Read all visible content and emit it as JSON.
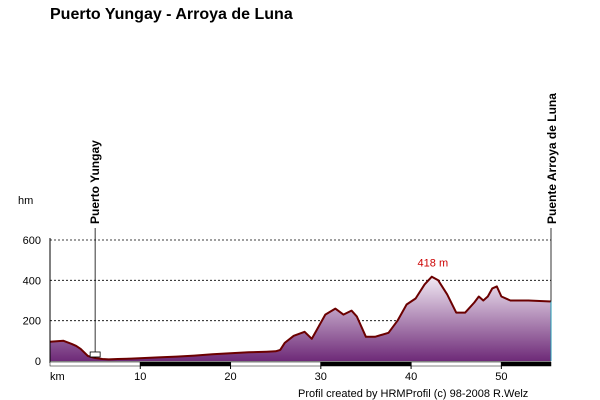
{
  "chart_data": {
    "type": "area",
    "title": "Puerto Yungay - Arroya de Luna",
    "ylabel": "hm",
    "xlabel": "km",
    "xlim": [
      0,
      55.5
    ],
    "ylim": [
      0,
      600
    ],
    "x_ticks": [
      10,
      20,
      30,
      40,
      50
    ],
    "y_ticks": [
      0,
      200,
      400,
      600
    ],
    "grid": "horizontal dashed",
    "colors": {
      "line": "#6b0000",
      "fill_top": "#f2eaf4",
      "fill_bottom": "#6e2a78",
      "peak_label": "#cc0000"
    },
    "x": [
      0,
      1.5,
      2.4,
      2.9,
      3.4,
      4.2,
      5,
      5.8,
      6.5,
      7.5,
      9,
      10.5,
      12,
      14,
      16,
      18,
      20,
      22,
      24,
      25,
      25.5,
      26,
      27,
      28.2,
      29,
      29.5,
      30.5,
      31.6,
      32.5,
      33.4,
      34,
      35,
      36,
      37.5,
      38.5,
      39.5,
      40.5,
      41.5,
      42.3,
      43,
      44,
      45,
      46,
      47,
      47.5,
      48,
      48.5,
      49,
      49.5,
      50,
      51,
      53,
      55.5
    ],
    "y": [
      95,
      100,
      85,
      75,
      60,
      25,
      15,
      10,
      8,
      10,
      12,
      15,
      18,
      22,
      27,
      33,
      38,
      43,
      46,
      48,
      55,
      90,
      125,
      145,
      110,
      150,
      230,
      260,
      230,
      250,
      220,
      120,
      120,
      140,
      200,
      280,
      310,
      380,
      418,
      400,
      330,
      240,
      240,
      290,
      320,
      300,
      320,
      360,
      370,
      320,
      300,
      300,
      295
    ],
    "peak": {
      "x": 42.3,
      "y": 418,
      "label": "418 m"
    },
    "waypoints": [
      {
        "x": 5,
        "y": 15,
        "label": "Puerto Yungay"
      },
      {
        "x": 55.5,
        "y": 295,
        "label": "Puente Arroya de Luna"
      }
    ],
    "credit": "Profil created by HRMProfil (c) 98-2008 R.Welz"
  }
}
